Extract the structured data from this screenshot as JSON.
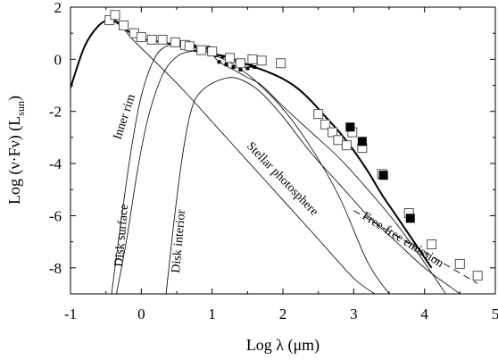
{
  "chart_data": {
    "type": "line",
    "xlabel": "Log λ (μm)",
    "ylabel": "Log (ν·Fν) (L",
    "ylabel_sub": "sun",
    "ylabel_close": ")",
    "xlim": [
      -1,
      5
    ],
    "ylim": [
      -9,
      2
    ],
    "x_ticks": [
      -1,
      0,
      1,
      2,
      3,
      4,
      5
    ],
    "y_ticks": [
      2,
      0,
      -2,
      -4,
      -6,
      -8
    ],
    "grid": false,
    "annotations": {
      "inner_rim": "Inner rim",
      "disk_surface": "Disk surface",
      "disk_interior": "Disk interior",
      "stellar_photosphere": "Stellar photosphere",
      "free_free": "Free-free emission"
    },
    "series": [
      {
        "key": "total",
        "style": "thick",
        "x": [
          -1.0,
          -0.8,
          -0.6,
          -0.45,
          -0.35,
          -0.2,
          0.0,
          0.2,
          0.4,
          0.6,
          0.8,
          0.95,
          1.05,
          1.2,
          1.4,
          1.6,
          1.8,
          2.0,
          2.2,
          2.4,
          2.6,
          2.8,
          3.0,
          3.2,
          3.4,
          3.6,
          3.8,
          4.0,
          4.1
        ],
        "y": [
          -1.1,
          0.5,
          1.3,
          1.5,
          1.45,
          1.1,
          0.8,
          0.7,
          0.6,
          0.5,
          0.3,
          0.4,
          0.2,
          0.1,
          -0.1,
          -0.3,
          -0.5,
          -0.75,
          -1.1,
          -1.6,
          -2.2,
          -2.8,
          -3.5,
          -4.3,
          -5.2,
          -6.0,
          -6.8,
          -7.6,
          -8.0
        ]
      },
      {
        "key": "stellar_photosphere",
        "style": "thin",
        "x": [
          -1.0,
          -0.8,
          -0.6,
          -0.45,
          -0.3,
          -0.1,
          0.2,
          0.6,
          1.0,
          1.5,
          2.0,
          2.5,
          3.0,
          3.3
        ],
        "y": [
          -1.1,
          0.5,
          1.3,
          1.45,
          1.3,
          0.7,
          -0.1,
          -1.2,
          -2.4,
          -3.9,
          -5.4,
          -6.9,
          -8.4,
          -9.0
        ]
      },
      {
        "key": "inner_rim",
        "style": "thin",
        "x": [
          -0.42,
          -0.3,
          -0.15,
          0.0,
          0.2,
          0.4,
          0.6,
          0.8,
          1.0,
          1.3,
          1.6,
          2.0,
          2.4,
          2.8,
          3.2,
          3.5
        ],
        "y": [
          -9.0,
          -6.5,
          -3.6,
          -1.4,
          0.1,
          0.55,
          0.55,
          0.4,
          0.2,
          -0.2,
          -0.8,
          -1.9,
          -3.4,
          -5.3,
          -7.8,
          -9.0
        ]
      },
      {
        "key": "disk_surface",
        "style": "thin",
        "x": [
          -0.35,
          -0.2,
          -0.05,
          0.1,
          0.3,
          0.5,
          0.7,
          0.85,
          0.95,
          1.0,
          1.1,
          1.3,
          1.5,
          1.7,
          2.0,
          2.4,
          2.8,
          3.2,
          3.6,
          4.0,
          4.3
        ],
        "y": [
          -9.0,
          -6.8,
          -4.2,
          -2.2,
          -0.6,
          0.1,
          0.3,
          0.3,
          0.3,
          0.2,
          -0.1,
          -0.4,
          -0.7,
          -1.0,
          -1.8,
          -2.8,
          -3.8,
          -5.0,
          -6.3,
          -7.8,
          -9.0
        ]
      },
      {
        "key": "disk_interior",
        "style": "thin",
        "x": [
          0.35,
          0.45,
          0.55,
          0.65,
          0.75,
          0.9,
          1.1,
          1.3,
          1.5,
          1.7,
          2.0,
          2.4,
          2.8,
          3.2,
          3.6,
          4.0,
          4.4,
          4.5
        ],
        "y": [
          -9.0,
          -6.5,
          -4.3,
          -2.6,
          -1.6,
          -1.1,
          -0.8,
          -0.7,
          -0.9,
          -1.3,
          -2.2,
          -3.6,
          -4.8,
          -6.0,
          -7.0,
          -8.0,
          -8.8,
          -9.0
        ]
      }
    ],
    "free_free": {
      "x": [
        3.0,
        4.75
      ],
      "y": [
        -5.8,
        -8.6
      ]
    },
    "open_squares": [
      [
        -0.45,
        1.5
      ],
      [
        -0.37,
        1.7
      ],
      [
        -0.25,
        1.3
      ],
      [
        -0.1,
        1.0
      ],
      [
        0.0,
        0.85
      ],
      [
        0.15,
        0.75
      ],
      [
        0.3,
        0.75
      ],
      [
        0.48,
        0.65
      ],
      [
        0.62,
        0.55
      ],
      [
        0.68,
        0.5
      ],
      [
        0.85,
        0.35
      ],
      [
        1.0,
        0.3
      ],
      [
        1.25,
        0.05
      ],
      [
        1.4,
        -0.15
      ],
      [
        1.57,
        0.0
      ],
      [
        1.7,
        -0.05
      ],
      [
        1.97,
        -0.15
      ],
      [
        2.5,
        -2.1
      ],
      [
        2.6,
        -2.5
      ],
      [
        2.7,
        -2.8
      ],
      [
        2.78,
        -3.1
      ],
      [
        2.9,
        -3.3
      ],
      [
        2.98,
        -2.8
      ],
      [
        3.12,
        -3.4
      ],
      [
        3.4,
        -4.4
      ],
      [
        3.78,
        -5.9
      ],
      [
        4.1,
        -7.1
      ],
      [
        4.5,
        -7.85
      ],
      [
        4.75,
        -8.3
      ]
    ],
    "filled_squares": [
      [
        2.95,
        -2.6
      ],
      [
        3.12,
        -3.15
      ],
      [
        3.42,
        -4.45
      ],
      [
        3.8,
        -6.1
      ]
    ],
    "spectrum": {
      "x": [
        0.55,
        0.6,
        0.65,
        0.7,
        0.75,
        0.8,
        0.85,
        0.9,
        0.95,
        1.0,
        1.05,
        1.1,
        1.15,
        1.2,
        1.25,
        1.3,
        1.35,
        1.4,
        1.45,
        1.5,
        1.55,
        1.6
      ],
      "y": [
        0.65,
        0.6,
        0.55,
        0.5,
        0.5,
        0.35,
        0.3,
        0.4,
        0.45,
        0.35,
        0.15,
        -0.1,
        0.1,
        -0.2,
        0.0,
        -0.3,
        -0.1,
        -0.4,
        -0.2,
        -0.35,
        -0.25,
        -0.3
      ]
    }
  }
}
